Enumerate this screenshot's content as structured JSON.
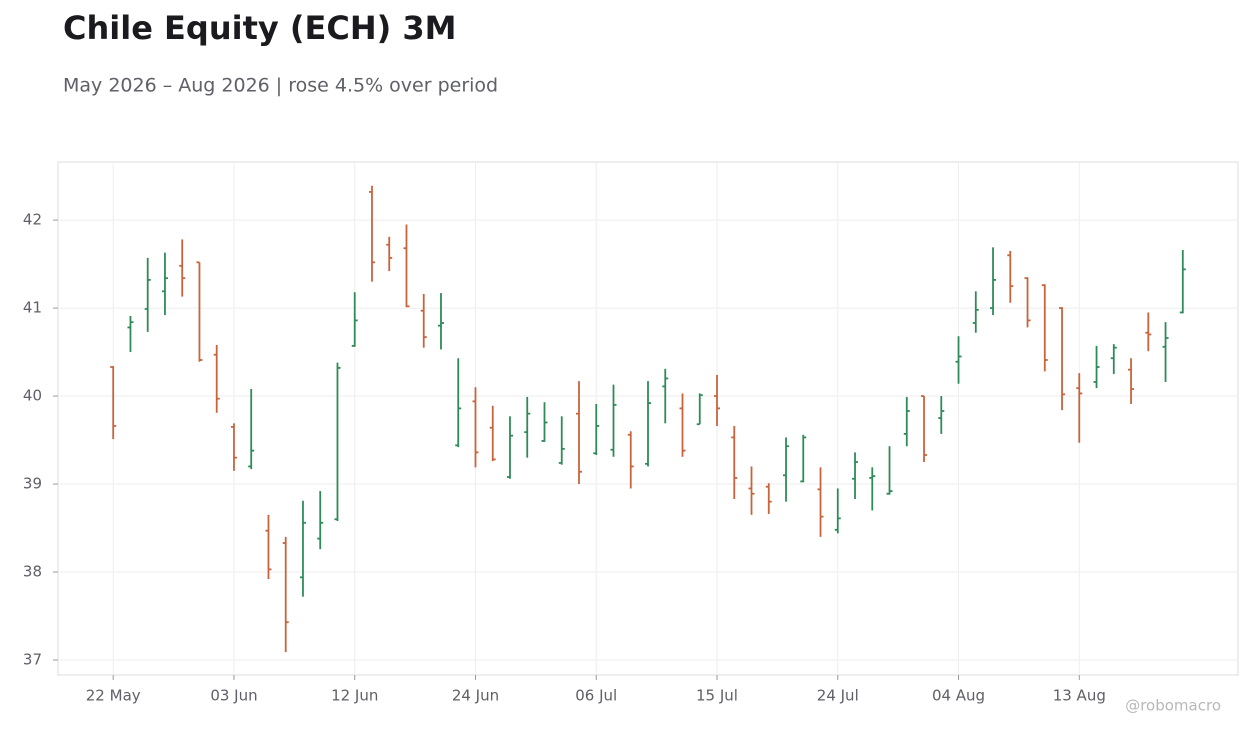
{
  "chart_data": {
    "type": "ohlc",
    "title": "Chile Equity (ECH) 3M",
    "subtitle": "May 2026 – Aug 2026 | rose 4.5% over period",
    "credit": "@robomacro",
    "categories": [
      "22 May",
      null,
      null,
      null,
      null,
      null,
      null,
      "03 Jun",
      null,
      null,
      null,
      null,
      null,
      null,
      "12 Jun",
      null,
      null,
      null,
      null,
      null,
      null,
      "24 Jun",
      null,
      null,
      null,
      null,
      null,
      null,
      "06 Jul",
      null,
      null,
      null,
      null,
      null,
      null,
      "15 Jul",
      null,
      null,
      null,
      null,
      null,
      null,
      "24 Jul",
      null,
      null,
      null,
      null,
      null,
      null,
      "04 Aug",
      null,
      null,
      null,
      null,
      null,
      null,
      "13 Aug",
      null,
      null,
      null,
      null,
      null,
      null
    ],
    "open": [
      40.33,
      40.78,
      40.99,
      41.19,
      41.48,
      41.52,
      40.47,
      39.65,
      39.2,
      38.47,
      38.33,
      37.94,
      38.38,
      38.6,
      40.57,
      42.32,
      41.72,
      41.68,
      40.97,
      40.8,
      39.44,
      39.94,
      39.64,
      39.08,
      39.59,
      39.49,
      39.24,
      39.8,
      39.35,
      39.39,
      39.56,
      39.23,
      40.11,
      39.86,
      39.68,
      40.0,
      39.53,
      38.95,
      38.97,
      39.1,
      39.03,
      38.94,
      38.48,
      39.06,
      39.07,
      38.89,
      39.57,
      40.0,
      39.75,
      40.39,
      40.83,
      41.0,
      41.6,
      41.34,
      41.26,
      41.0,
      40.09,
      40.16,
      40.43,
      40.3,
      40.72,
      40.56,
      40.95
    ],
    "high": [
      40.34,
      40.91,
      41.57,
      41.63,
      41.78,
      41.52,
      40.58,
      39.69,
      40.08,
      38.65,
      38.4,
      38.81,
      38.92,
      40.38,
      41.18,
      42.39,
      41.81,
      41.95,
      41.16,
      41.17,
      40.43,
      40.1,
      39.89,
      39.77,
      39.99,
      39.93,
      39.77,
      40.17,
      39.91,
      40.13,
      39.6,
      40.17,
      40.31,
      40.03,
      40.03,
      40.24,
      39.66,
      39.2,
      39.01,
      39.53,
      39.56,
      39.19,
      38.95,
      39.36,
      39.19,
      39.43,
      39.99,
      40.0,
      40.0,
      40.68,
      41.19,
      41.69,
      41.65,
      41.35,
      41.27,
      41.01,
      40.26,
      40.57,
      40.59,
      40.43,
      40.95,
      40.84,
      41.66
    ],
    "low": [
      39.51,
      40.5,
      40.73,
      40.92,
      41.13,
      40.39,
      39.81,
      39.15,
      39.17,
      37.92,
      37.09,
      37.72,
      38.26,
      38.58,
      40.56,
      41.3,
      41.42,
      41.01,
      40.55,
      40.53,
      39.42,
      39.19,
      39.26,
      39.06,
      39.3,
      39.48,
      39.22,
      39.0,
      39.33,
      39.31,
      38.95,
      39.2,
      39.69,
      39.31,
      39.68,
      39.66,
      38.83,
      38.65,
      38.66,
      38.8,
      39.02,
      38.4,
      38.44,
      38.83,
      38.7,
      38.88,
      39.43,
      39.25,
      39.57,
      40.14,
      40.72,
      40.92,
      41.06,
      40.78,
      40.28,
      39.84,
      39.47,
      40.09,
      40.25,
      39.91,
      40.51,
      40.16,
      40.94
    ],
    "close": [
      39.66,
      40.84,
      41.32,
      41.34,
      41.34,
      40.41,
      39.97,
      39.3,
      39.38,
      38.03,
      37.43,
      38.56,
      38.56,
      40.32,
      40.86,
      41.52,
      41.57,
      41.02,
      40.67,
      40.83,
      39.86,
      39.36,
      39.28,
      39.55,
      39.8,
      39.7,
      39.4,
      39.14,
      39.66,
      39.9,
      39.2,
      39.92,
      40.2,
      39.38,
      40.01,
      39.86,
      39.07,
      38.89,
      38.8,
      39.43,
      39.53,
      38.63,
      38.61,
      39.25,
      39.09,
      38.92,
      39.83,
      39.33,
      39.83,
      40.45,
      40.98,
      41.32,
      41.25,
      40.86,
      40.41,
      40.02,
      40.03,
      40.33,
      40.55,
      40.08,
      40.7,
      40.66,
      41.44
    ],
    "up_color": "#2e8b57",
    "down_color": "#c8643c",
    "ylim": [
      36.83,
      42.66
    ],
    "yticks": [
      37,
      38,
      39,
      40,
      41,
      42
    ],
    "grid": true
  }
}
